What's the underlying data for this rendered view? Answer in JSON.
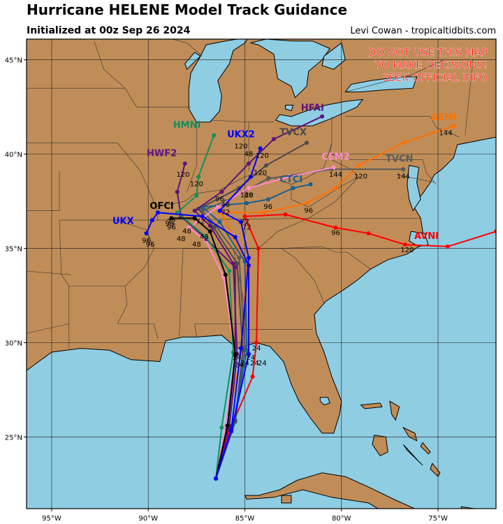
{
  "header": {
    "title": "Hurricane HELENE Model Track Guidance",
    "subtitle": "Initialized at 00z Sep 26 2024",
    "credit": "Levi Cowan - tropicaltidbits.com"
  },
  "warning": {
    "lines": [
      "DO NOT USE THIS MAP",
      "TO MAKE DECISIONS!",
      "SEEK OFFICIAL INFO"
    ],
    "color": "#ff0000"
  },
  "colors": {
    "ocean": "#8fcde3",
    "land": "#c08d58",
    "coast": "#000000",
    "grid": "#1a1a1a"
  },
  "axes": {
    "lon_labels": [
      {
        "lon": -95,
        "text": "95°W"
      },
      {
        "lon": -90,
        "text": "90°W"
      },
      {
        "lon": -85,
        "text": "85°W"
      },
      {
        "lon": -80,
        "text": "80°W"
      },
      {
        "lon": -75,
        "text": "75°W"
      }
    ],
    "lat_labels": [
      {
        "lat": 45,
        "text": "45°N"
      },
      {
        "lat": 40,
        "text": "40°N"
      },
      {
        "lat": 35,
        "text": "35°N"
      },
      {
        "lat": 30,
        "text": "30°N"
      },
      {
        "lat": 25,
        "text": "25°N"
      }
    ]
  },
  "models": [
    {
      "name": "AVNI",
      "color": "#ff0000",
      "label_pos": [
        -75.6,
        35.5
      ],
      "track": [
        [
          -86.5,
          22.8
        ],
        [
          -85.8,
          25.3
        ],
        [
          -84.6,
          28.2
        ],
        [
          -84.4,
          30.0
        ],
        [
          -84.3,
          35.0
        ],
        [
          -85.0,
          36.7
        ],
        [
          -82.9,
          36.8
        ],
        [
          -80.3,
          36.1
        ],
        [
          -78.6,
          35.8
        ],
        [
          -76.7,
          35.2
        ],
        [
          -74.5,
          35.1
        ],
        [
          -72.0,
          35.9
        ]
      ],
      "hours": [
        {
          "h": "24",
          "at": [
            -84.4,
            29.6
          ]
        },
        {
          "h": "72",
          "at": [
            -85.0,
            36.3
          ]
        },
        {
          "h": "96",
          "at": [
            -80.3,
            35.7
          ]
        },
        {
          "h": "120",
          "at": [
            -76.6,
            34.8
          ]
        }
      ]
    },
    {
      "name": "AEMI",
      "color": "#ff7000",
      "label_pos": [
        -74.7,
        41.8
      ],
      "track": [
        [
          -86.5,
          22.8
        ],
        [
          -85.9,
          25.5
        ],
        [
          -85.2,
          29.5
        ],
        [
          -84.9,
          34.0
        ],
        [
          -86.2,
          36.9
        ],
        [
          -84.0,
          36.9
        ],
        [
          -81.8,
          37.4
        ],
        [
          -80.3,
          38.2
        ],
        [
          -79.1,
          39.4
        ],
        [
          -76.8,
          40.6
        ],
        [
          -74.2,
          41.5
        ]
      ],
      "hours": [
        {
          "h": "96",
          "at": [
            -81.7,
            36.9
          ]
        },
        {
          "h": "120",
          "at": [
            -79.0,
            38.7
          ]
        },
        {
          "h": "144",
          "at": [
            -74.6,
            41.0
          ]
        }
      ]
    },
    {
      "name": "TVCN",
      "color": "#5a5a5a",
      "label_pos": [
        -77.0,
        39.6
      ],
      "track": [
        [
          -86.5,
          22.8
        ],
        [
          -85.5,
          25.8
        ],
        [
          -85.0,
          29.7
        ],
        [
          -85.3,
          34.5
        ],
        [
          -86.5,
          36.2
        ],
        [
          -87.2,
          37.0
        ],
        [
          -86.0,
          37.5
        ],
        [
          -83.8,
          38.7
        ],
        [
          -80.5,
          39.2
        ],
        [
          -76.8,
          39.2
        ]
      ],
      "hours": [
        {
          "h": "144",
          "at": [
            -76.8,
            38.7
          ]
        }
      ]
    },
    {
      "name": "TVCX",
      "color": "#4a4a4a",
      "label_pos": [
        -82.5,
        41.0
      ],
      "track": [
        [
          -86.5,
          22.8
        ],
        [
          -85.5,
          25.9
        ],
        [
          -85.1,
          29.6
        ],
        [
          -85.4,
          34.2
        ],
        [
          -86.6,
          36.1
        ],
        [
          -87.4,
          37.1
        ],
        [
          -85.3,
          38.2
        ],
        [
          -83.9,
          39.4
        ],
        [
          -81.8,
          40.6
        ]
      ],
      "hours": [
        {
          "h": "120",
          "at": [
            -84.2,
            38.9
          ]
        }
      ]
    },
    {
      "name": "CTCI",
      "color": "#1a5f8c",
      "label_pos": [
        -82.6,
        38.5
      ],
      "track": [
        [
          -86.5,
          22.8
        ],
        [
          -85.6,
          25.7
        ],
        [
          -84.9,
          29.6
        ],
        [
          -85.0,
          34.3
        ],
        [
          -86.3,
          36.4
        ],
        [
          -87.2,
          37.2
        ],
        [
          -84.9,
          37.4
        ],
        [
          -83.8,
          37.6
        ],
        [
          -82.5,
          38.2
        ],
        [
          -81.6,
          38.4
        ]
      ],
      "hours": [
        {
          "h": "96",
          "at": [
            -83.8,
            37.1
          ]
        }
      ]
    },
    {
      "name": "CEM2",
      "color": "#ff8ccc",
      "label_pos": [
        -80.3,
        39.7
      ],
      "track": [
        [
          -86.5,
          22.8
        ],
        [
          -86.0,
          25.6
        ],
        [
          -85.5,
          29.3
        ],
        [
          -86.1,
          33.5
        ],
        [
          -87.0,
          35.4
        ],
        [
          -87.9,
          36.1
        ],
        [
          -86.4,
          37.2
        ],
        [
          -84.8,
          38.2
        ],
        [
          -82.7,
          38.8
        ],
        [
          -80.4,
          39.3
        ]
      ],
      "hours": [
        {
          "h": "120",
          "at": [
            -84.9,
            37.7
          ]
        },
        {
          "h": "144",
          "at": [
            -80.3,
            38.8
          ]
        }
      ]
    },
    {
      "name": "HFAI",
      "color": "#5c147a",
      "label_pos": [
        -81.5,
        42.3
      ],
      "track": [
        [
          -86.5,
          22.8
        ],
        [
          -85.8,
          25.6
        ],
        [
          -85.4,
          29.4
        ],
        [
          -85.6,
          34.2
        ],
        [
          -86.8,
          36.2
        ],
        [
          -87.6,
          37.0
        ],
        [
          -86.2,
          38.0
        ],
        [
          -84.8,
          39.5
        ],
        [
          -83.5,
          40.8
        ],
        [
          -81.0,
          42.0
        ]
      ],
      "hours": [
        {
          "h": "120",
          "at": [
            -85.2,
            40.3
          ]
        }
      ]
    },
    {
      "name": "HWF2",
      "color": "#5c147a",
      "label_pos": [
        -89.3,
        39.9
      ],
      "track": [
        [
          -86.5,
          22.8
        ],
        [
          -85.9,
          25.4
        ],
        [
          -85.5,
          29.3
        ],
        [
          -85.5,
          34.0
        ],
        [
          -87.0,
          35.5
        ],
        [
          -88.3,
          36.7
        ],
        [
          -88.5,
          38.0
        ],
        [
          -88.1,
          39.5
        ]
      ],
      "hours": [
        {
          "h": "120",
          "at": [
            -88.2,
            38.8
          ]
        },
        {
          "h": "96",
          "at": [
            -88.9,
            36.2
          ]
        }
      ]
    },
    {
      "name": "HMNI",
      "color": "#14905a",
      "label_pos": [
        -88.0,
        41.4
      ],
      "track": [
        [
          -86.5,
          22.8
        ],
        [
          -86.2,
          25.5
        ],
        [
          -85.6,
          29.5
        ],
        [
          -85.8,
          33.8
        ],
        [
          -87.0,
          35.6
        ],
        [
          -88.5,
          36.9
        ],
        [
          -87.5,
          37.8
        ],
        [
          -87.4,
          38.8
        ],
        [
          -86.6,
          41.0
        ]
      ],
      "hours": [
        {
          "h": "120",
          "at": [
            -87.5,
            38.3
          ]
        }
      ]
    },
    {
      "name": "UKX2",
      "color": "#0000ff",
      "label_pos": [
        -85.2,
        40.9
      ],
      "track": [
        [
          -86.5,
          22.8
        ],
        [
          -85.7,
          25.4
        ],
        [
          -85.2,
          29.7
        ],
        [
          -84.8,
          34.5
        ],
        [
          -85.2,
          36.4
        ],
        [
          -86.3,
          37.0
        ],
        [
          -84.7,
          38.8
        ],
        [
          -84.2,
          40.3
        ]
      ],
      "hours": [
        {
          "h": "120",
          "at": [
            -84.1,
            39.8
          ]
        },
        {
          "h": "48",
          "at": [
            -84.8,
            39.9
          ]
        }
      ]
    },
    {
      "name": "OFCI",
      "color": "#000000",
      "label_pos": [
        -89.3,
        37.1
      ],
      "track": [
        [
          -86.5,
          22.8
        ],
        [
          -85.9,
          25.6
        ],
        [
          -85.5,
          29.4
        ],
        [
          -86.0,
          33.6
        ],
        [
          -86.8,
          35.9
        ],
        [
          -87.6,
          36.6
        ],
        [
          -88.8,
          36.6
        ]
      ],
      "hours": [
        {
          "h": "72",
          "at": [
            -88.8,
            36.3
          ]
        }
      ]
    },
    {
      "name": "UKX",
      "color": "#0000ff",
      "label_pos": [
        -91.3,
        36.3
      ],
      "track": [
        [
          -86.5,
          22.8
        ],
        [
          -85.7,
          25.3
        ],
        [
          -84.8,
          29.4
        ],
        [
          -84.8,
          34.1
        ],
        [
          -85.5,
          35.6
        ],
        [
          -87.2,
          36.7
        ],
        [
          -89.5,
          36.9
        ],
        [
          -89.8,
          36.5
        ],
        [
          -90.1,
          35.8
        ]
      ],
      "hours": [
        {
          "h": "96",
          "at": [
            -90.1,
            35.3
          ]
        }
      ]
    }
  ],
  "hour_labels": [
    {
      "h": "96",
      "at": [
        -88.8,
        36.0
      ]
    },
    {
      "h": "48",
      "at": [
        -88.0,
        35.8
      ]
    },
    {
      "h": "48",
      "at": [
        -87.1,
        35.5
      ]
    },
    {
      "h": "48",
      "at": [
        -88.3,
        35.4
      ]
    },
    {
      "h": "48",
      "at": [
        -87.5,
        35.1
      ]
    },
    {
      "h": "72",
      "at": [
        -87.3,
        36.3
      ]
    },
    {
      "h": "72",
      "at": [
        -86.0,
        36.8
      ]
    },
    {
      "h": "72",
      "at": [
        -84.9,
        36.0
      ]
    },
    {
      "h": "48",
      "at": [
        -86.0,
        37.2
      ]
    },
    {
      "h": "48",
      "at": [
        -84.8,
        37.7
      ]
    },
    {
      "h": "96",
      "at": [
        -86.3,
        37.5
      ]
    },
    {
      "h": "96",
      "at": [
        -89.9,
        35.1
      ]
    },
    {
      "h": "24",
      "at": [
        -85.4,
        29.1
      ]
    },
    {
      "h": "24",
      "at": [
        -85.0,
        28.8
      ]
    },
    {
      "h": "24",
      "at": [
        -84.5,
        28.8
      ]
    },
    {
      "h": "24",
      "at": [
        -85.3,
        28.7
      ]
    },
    {
      "h": "24",
      "at": [
        -84.7,
        29.1
      ]
    },
    {
      "h": "24",
      "at": [
        -84.1,
        28.8
      ]
    }
  ]
}
